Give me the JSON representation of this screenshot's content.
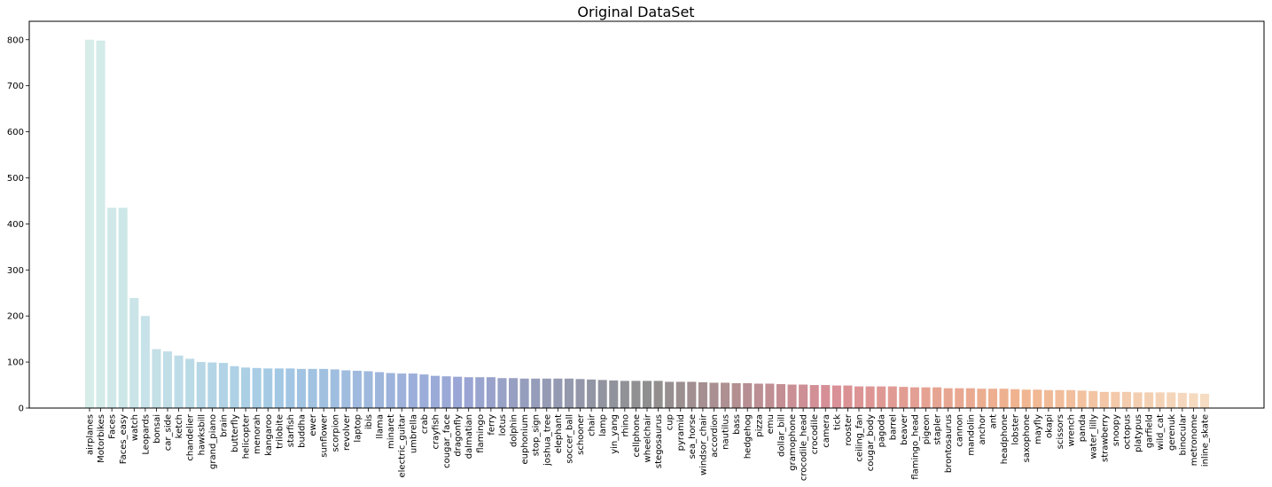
{
  "chart_data": {
    "type": "bar",
    "title": "Original DataSet",
    "xlabel": "",
    "ylabel": "",
    "ylim": [
      0,
      840
    ],
    "yticks": [
      0,
      100,
      200,
      300,
      400,
      500,
      600,
      700,
      800
    ],
    "grid": false,
    "colors": {
      "start": "#d6ede9",
      "mid1": "#a3c9e4",
      "mid2": "#9aa6d6",
      "mid3": "#8f8f8f",
      "mid4": "#d98f96",
      "mid5": "#f0b48f",
      "end": "#f5dcc2"
    },
    "categories": [
      "airplanes",
      "Motorbikes",
      "Faces",
      "Faces_easy",
      "watch",
      "Leopards",
      "bonsai",
      "car_side",
      "ketch",
      "chandelier",
      "hawksbill",
      "grand_piano",
      "brain",
      "butterfly",
      "helicopter",
      "menorah",
      "kangaroo",
      "trilobite",
      "starfish",
      "buddha",
      "ewer",
      "sunflower",
      "scorpion",
      "revolver",
      "laptop",
      "ibis",
      "llama",
      "minaret",
      "electric_guitar",
      "umbrella",
      "crab",
      "crayfish",
      "cougar_face",
      "dragonfly",
      "dalmatian",
      "flamingo",
      "ferry",
      "lotus",
      "dolphin",
      "euphonium",
      "stop_sign",
      "joshua_tree",
      "elephant",
      "soccer_ball",
      "schooner",
      "chair",
      "lamp",
      "yin_yang",
      "rhino",
      "cellphone",
      "wheelchair",
      "stegosaurus",
      "cup",
      "pyramid",
      "sea_horse",
      "windsor_chair",
      "accordion",
      "nautilus",
      "bass",
      "hedgehog",
      "pizza",
      "emu",
      "dollar_bill",
      "gramophone",
      "crocodile_head",
      "crocodile",
      "camera",
      "tick",
      "rooster",
      "ceiling_fan",
      "cougar_body",
      "pagoda",
      "barrel",
      "beaver",
      "flamingo_head",
      "pigeon",
      "stapler",
      "brontosaurus",
      "cannon",
      "mandolin",
      "anchor",
      "ant",
      "headphone",
      "lobster",
      "saxophone",
      "mayfly",
      "okapi",
      "scissors",
      "wrench",
      "panda",
      "water_lilly",
      "strawberry",
      "snoopy",
      "octopus",
      "platypus",
      "garfield",
      "wild_cat",
      "gerenuk",
      "binocular",
      "metronome",
      "inline_skate"
    ],
    "values": [
      800,
      798,
      435,
      435,
      239,
      200,
      128,
      123,
      114,
      107,
      100,
      99,
      98,
      91,
      88,
      87,
      86,
      86,
      86,
      85,
      85,
      85,
      84,
      82,
      81,
      80,
      78,
      76,
      75,
      75,
      73,
      70,
      69,
      68,
      67,
      67,
      67,
      65,
      65,
      64,
      64,
      64,
      64,
      64,
      63,
      62,
      61,
      60,
      59,
      59,
      59,
      59,
      57,
      57,
      57,
      56,
      55,
      55,
      54,
      54,
      53,
      53,
      52,
      51,
      51,
      50,
      50,
      49,
      49,
      47,
      47,
      47,
      47,
      46,
      45,
      45,
      45,
      43,
      43,
      43,
      42,
      42,
      42,
      41,
      40,
      40,
      39,
      39,
      39,
      38,
      37,
      35,
      35,
      35,
      34,
      34,
      34,
      34,
      33,
      32,
      31
    ]
  }
}
